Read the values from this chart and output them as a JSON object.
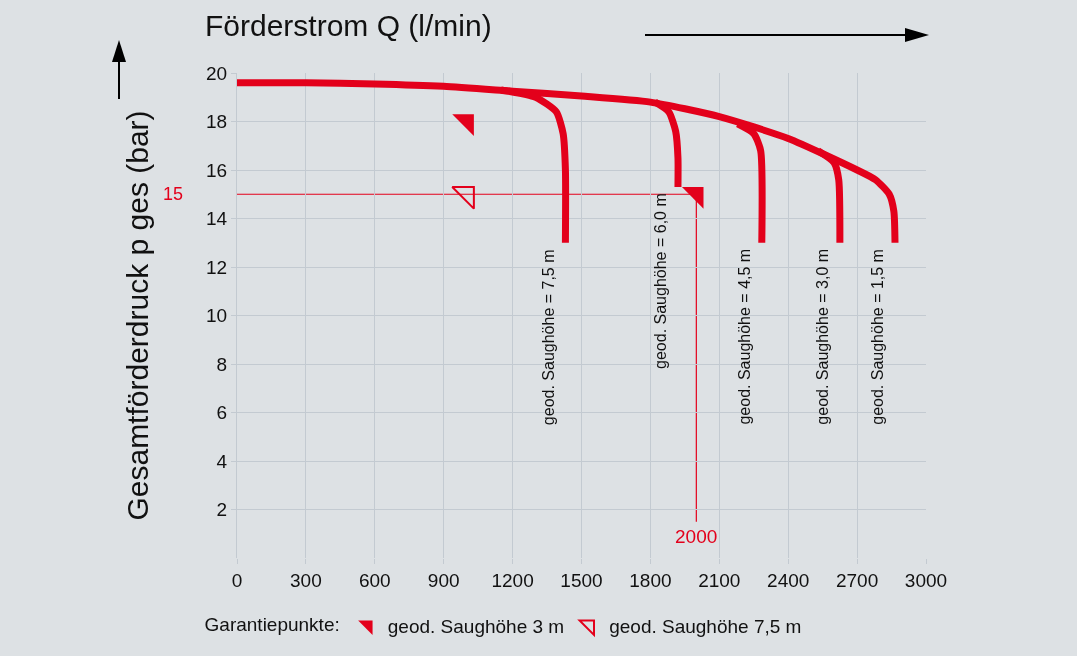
{
  "chart_data": {
    "type": "line",
    "xlabel": "Förderstrom Q (l/min)",
    "ylabel": "Gesamtförderdruck p ges (bar)",
    "legend_title": "Garantiepunkte:",
    "xlim": [
      0,
      3000
    ],
    "xticks": [
      0,
      300,
      600,
      900,
      1200,
      1500,
      1800,
      2100,
      2400,
      2700,
      3000
    ],
    "ylim": [
      0,
      20
    ],
    "yticks": [
      2,
      4,
      6,
      8,
      10,
      12,
      14,
      16,
      18,
      20
    ],
    "grid": true,
    "legend": "bottom",
    "line_style": "solid",
    "series": [
      {
        "color": "#e3001b",
        "x": [
          0,
          300,
          600,
          900,
          1200,
          1500,
          1800,
          2100,
          2400,
          2700,
          2780,
          2840,
          2860,
          2865
        ],
        "values": [
          19.6,
          19.6,
          19.55,
          19.45,
          19.25,
          19.05,
          18.8,
          18.2,
          17.3,
          16.0,
          15.6,
          15.0,
          14.3,
          13
        ]
      },
      {
        "color": "#e3001b",
        "x": [
          1150,
          1300,
          1390,
          1420,
          1430,
          1430
        ],
        "values": [
          19.3,
          19.0,
          18.4,
          17.5,
          16,
          13
        ]
      },
      {
        "color": "#e3001b",
        "x": [
          1820,
          1880,
          1910,
          1920,
          1920
        ],
        "values": [
          18.8,
          18.4,
          17.6,
          16.5,
          15.3
        ]
      },
      {
        "color": "#e3001b",
        "x": [
          2180,
          2250,
          2280,
          2285
        ],
        "values": [
          17.9,
          17.5,
          16.8,
          13
        ]
      },
      {
        "color": "#e3001b",
        "x": [
          2530,
          2600,
          2620,
          2625
        ],
        "values": [
          16.8,
          16.3,
          15.6,
          13
        ]
      },
      {
        "type": "scatter",
        "name": "geod. Saughöhe 3 m",
        "color": "#e3001b",
        "marker": "triangle",
        "x": [
          1000,
          2000
        ],
        "values": [
          18,
          15
        ]
      },
      {
        "type": "scatter",
        "name": "geod. Saughöhe 7,5 m",
        "color": "#e3001b",
        "marker": "triangle",
        "x": [
          1000
        ],
        "values": [
          15
        ]
      }
    ],
    "ref_lines": [
      {
        "axis": "y",
        "value": 15,
        "label": "15",
        "color": "#e3001b"
      },
      {
        "axis": "x",
        "value": 2000,
        "label": "2000",
        "color": "#e3001b"
      }
    ],
    "annotations": [
      {
        "text": "geod. Saughöhe = 7,5 m",
        "x": 1430,
        "y": 13
      },
      {
        "text": "geod. Saughöhe = 6,0 m",
        "x": 1920,
        "y": 15.3
      },
      {
        "text": "geod. Saughöhe = 4,5 m",
        "x": 2285,
        "y": 13
      },
      {
        "text": "geod. Saughöhe = 3,0 m",
        "x": 2625,
        "y": 13
      },
      {
        "text": "geod. Saughöhe = 1,5 m",
        "x": 2865,
        "y": 13
      }
    ]
  }
}
